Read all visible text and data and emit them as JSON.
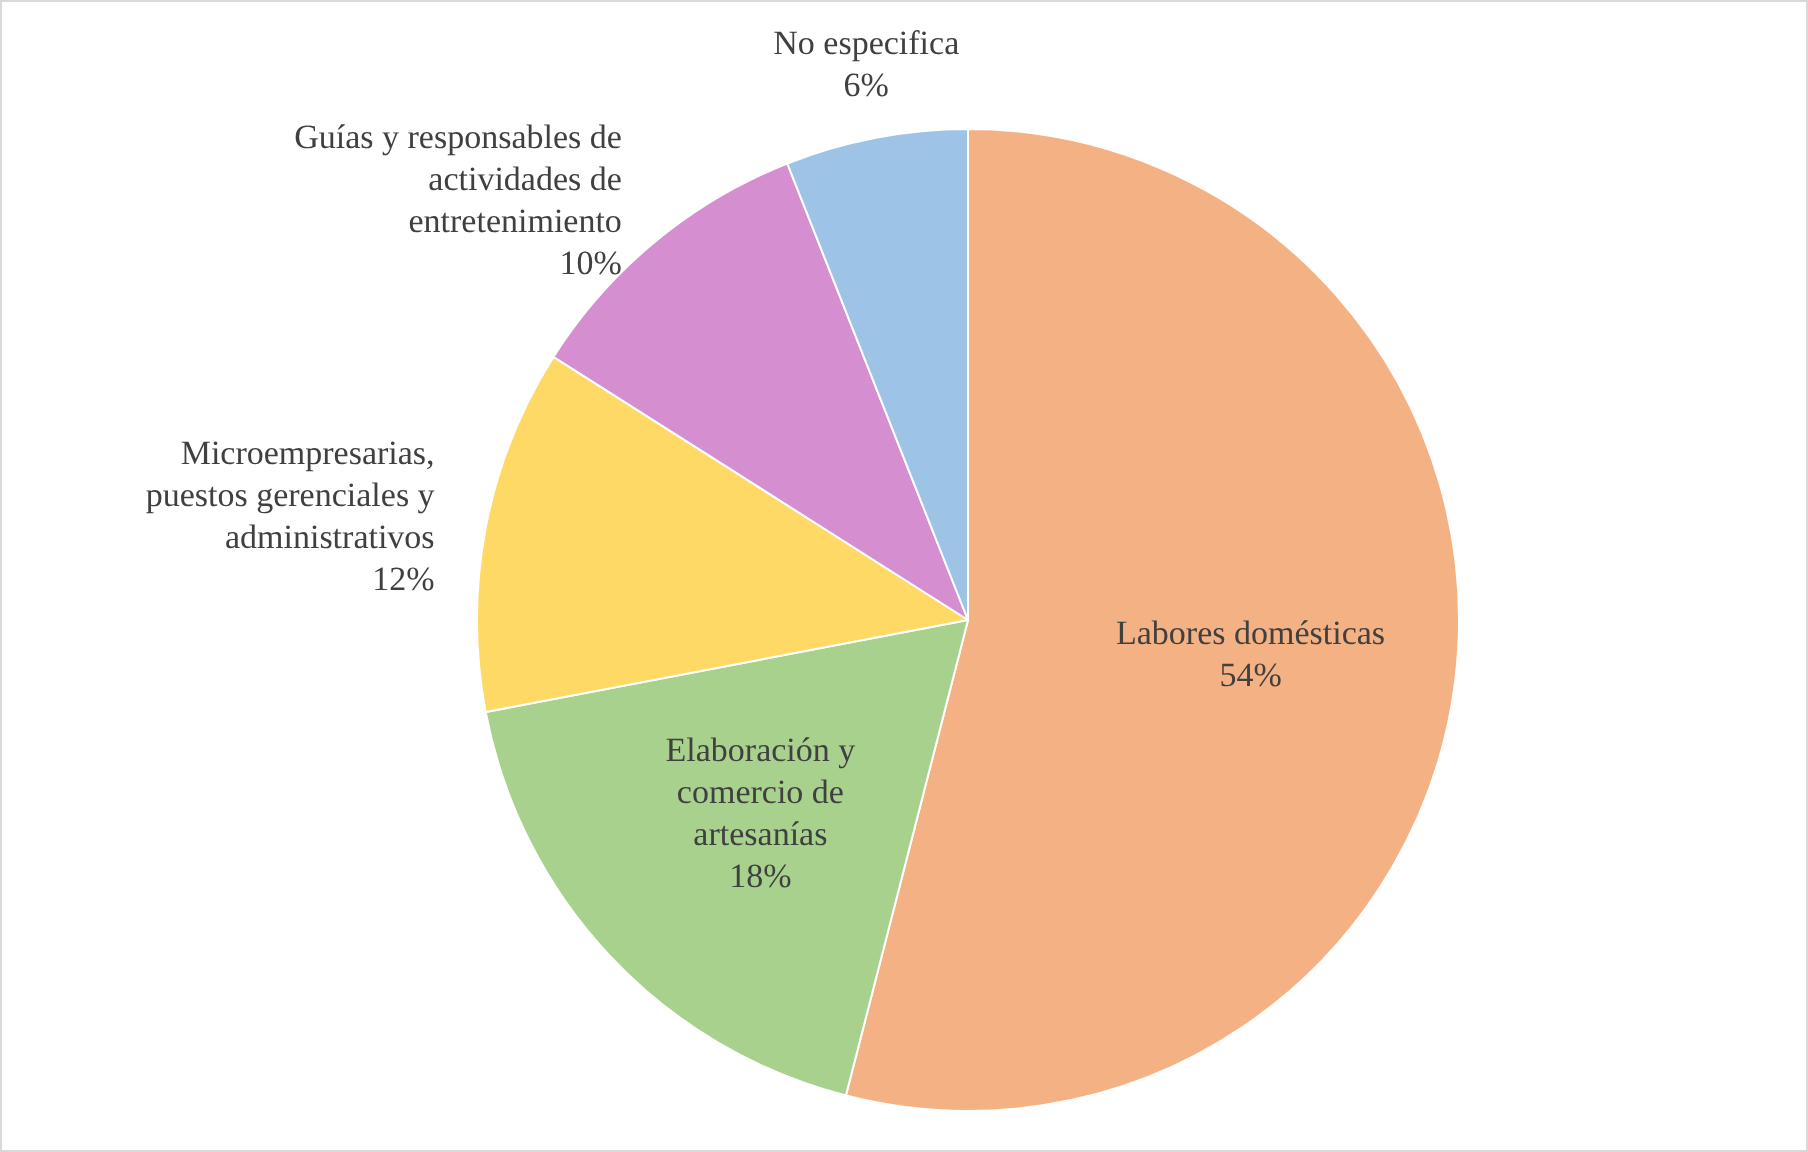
{
  "chart_data": {
    "type": "pie",
    "categories": [
      "Labores domésticas",
      "Elaboración y comercio de artesanías",
      "Microempresarias, puestos gerenciales y administrativos",
      "Guías y responsables de actividades de entretenimiento",
      "No especifica"
    ],
    "values": [
      54,
      18,
      12,
      10,
      6
    ],
    "colors": [
      "#f4b183",
      "#a9d18e",
      "#ffd966",
      "#d58fd1",
      "#9dc3e6"
    ],
    "value_labels": [
      "54%",
      "18%",
      "12%",
      "10%",
      "6%"
    ],
    "legend": false
  }
}
